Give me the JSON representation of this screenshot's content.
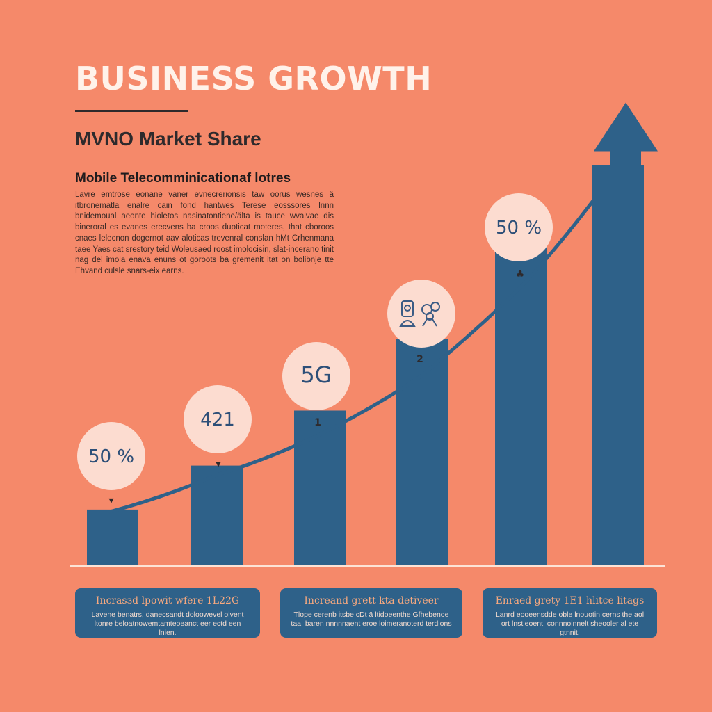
{
  "header": {
    "title": "BUSINESS GROWTH",
    "subtitle": "MVNO Market Share",
    "section_heading": "Mobile Telecomminicationaf lotres",
    "body_text": "Lavre emtrose eonane vaner evnecrerionsis taw oorus wesnes ä itbronematla enalre cain fond hantwes Terese eosssores lnnn bnidemoual aeonte hioletos nasinatontiene/älta is tauce wvalvae dis bineroral es evanes erecvens ba croos duoticat moteres, that cboroos cnaes lelecnon dogernot aav aloticas trevenral conslan hMt Crhenmana taee Yaes cat srestory teid Woleusaed roost imolocisin, slat-incerano tinit nag del imola enava enuns ot goroots ba gremenit itat on bolibnje tte Ehvand culsle snars-eix earns."
  },
  "chart_data": {
    "type": "bar",
    "title": "BUSINESS GROWTH",
    "subtitle": "MVNO Market Share",
    "xlabel": "",
    "ylabel": "",
    "categories": [
      "",
      "",
      "",
      "",
      "",
      ""
    ],
    "values": [
      1.0,
      1.8,
      2.8,
      4.1,
      5.9,
      8.4
    ],
    "ylim": [
      0,
      9
    ],
    "grid": false,
    "legend": "none",
    "bubbles": [
      {
        "bar": 0,
        "label": "50 %",
        "marker": "▾"
      },
      {
        "bar": 1,
        "label": "421",
        "marker": "▾"
      },
      {
        "bar": 2,
        "label": "5G",
        "marker": "1"
      },
      {
        "bar": 3,
        "label": "",
        "icon": "people-devices-icon",
        "marker": "2"
      },
      {
        "bar": 4,
        "label": "50 %",
        "marker": "♣"
      }
    ],
    "trend_line": true,
    "arrow_on_last_bar": true
  },
  "cards": [
    {
      "title": "Incrasзd lpowit wfere 1L22G",
      "body": "Lavene benatrs, danecsandt doloowevel olvent ltonre beloatnowemtamteoeanct eer ectd een lnien."
    },
    {
      "title": "Increand grett kta detiveer",
      "body": "Tlope cerenb itsbe cDt ä ltidoeenthe Gfhebenoe taa. baren nnnnnaent eroe loimeranoterd terdions"
    },
    {
      "title": "Enraed grety 1E1 hlitce litags",
      "body": "Lanrd eooeensdde oble lnouotin cerns the aol ort lnstieoent, connnoinnelt sheooler al ete gtnnit."
    }
  ],
  "colors": {
    "background": "#F5896A",
    "bar": "#2E6189",
    "bubble": "#FCDCD0",
    "text_dark": "#2E2A2C"
  }
}
